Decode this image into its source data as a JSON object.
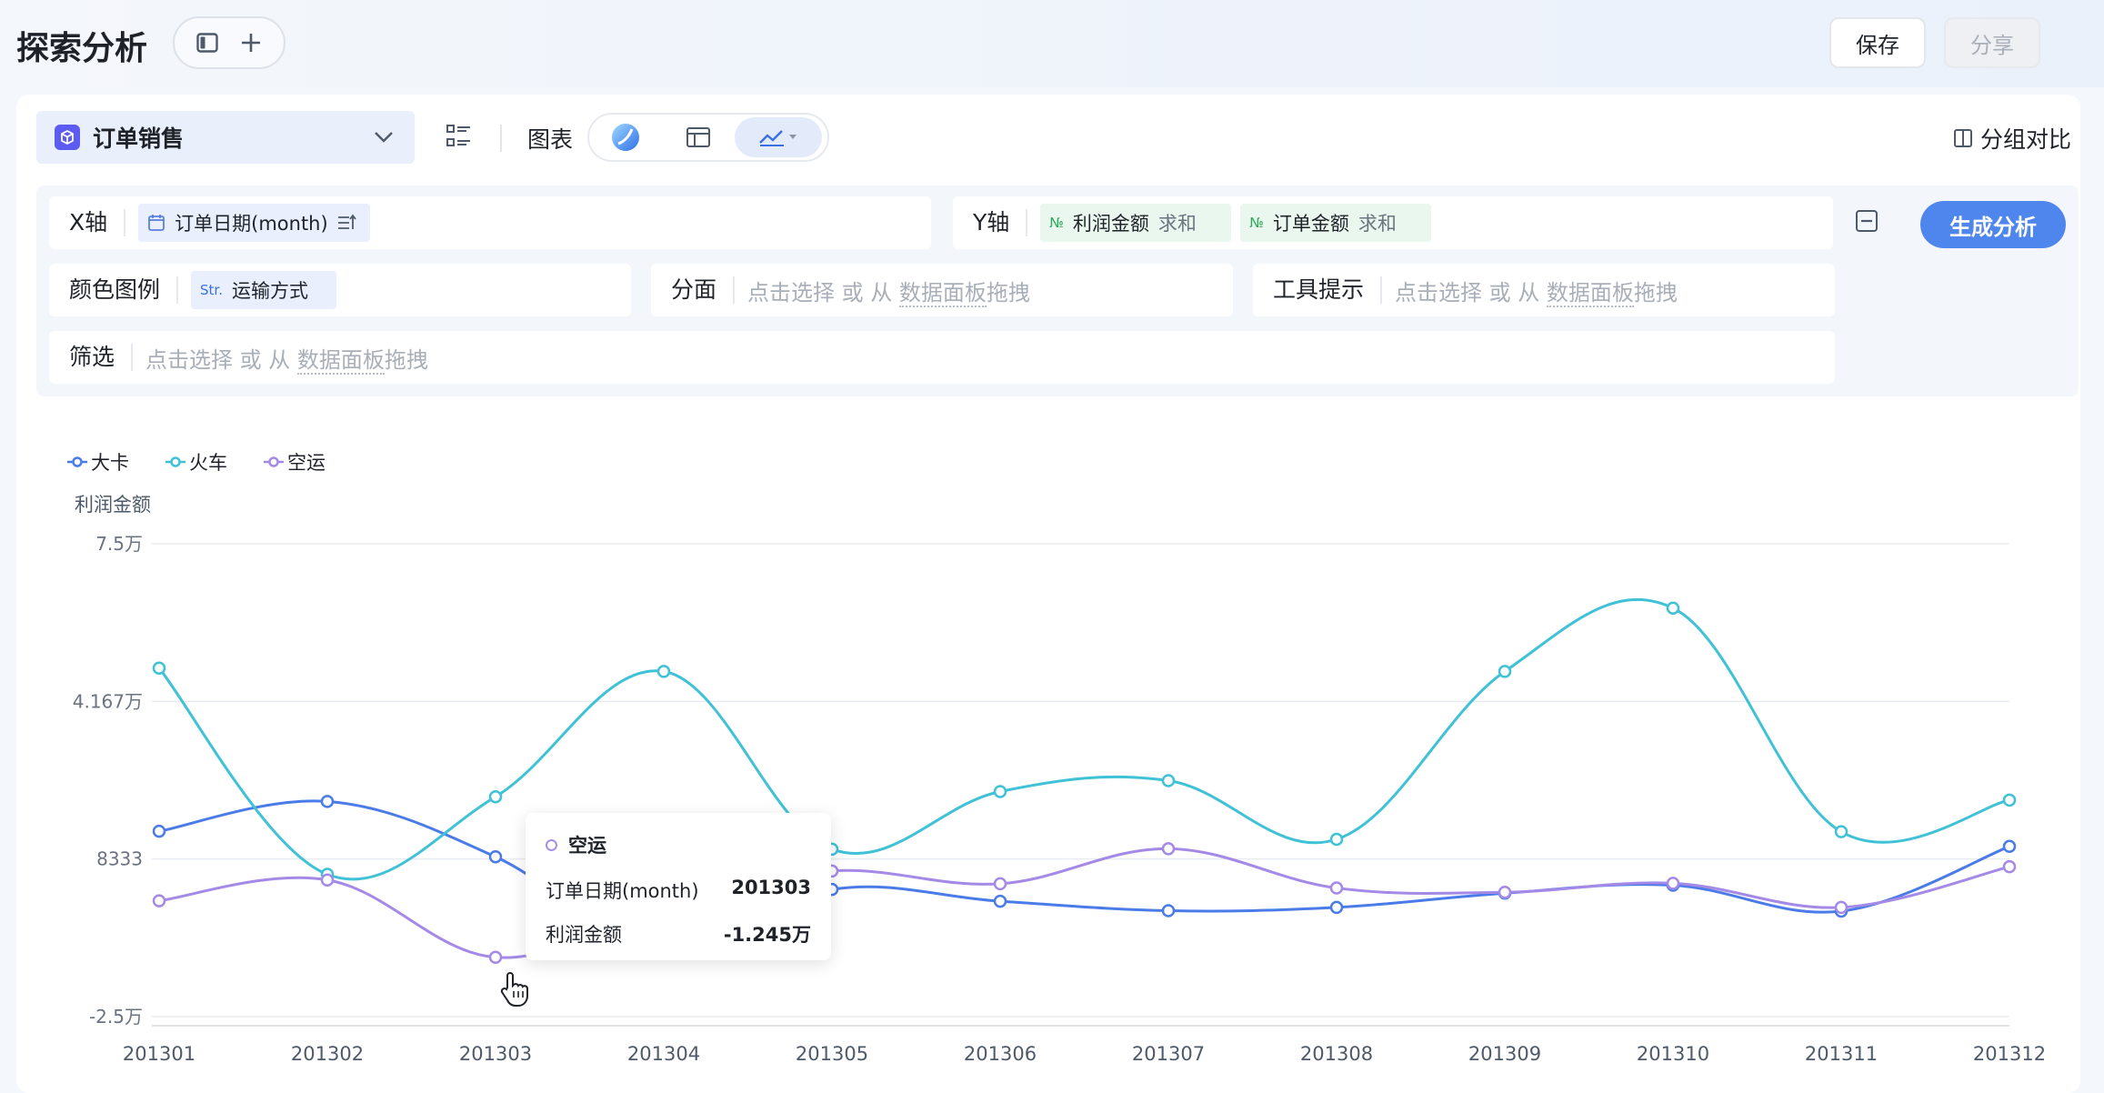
{
  "header": {
    "title": "探索分析",
    "save_label": "保存",
    "share_label": "分享"
  },
  "toolbar": {
    "dataset": "订单销售",
    "chart_label": "图表",
    "group_compare": "分组对比"
  },
  "config": {
    "x_axis": {
      "label": "X轴",
      "field": "订单日期(month)"
    },
    "y_axis": {
      "label": "Y轴",
      "fields": [
        {
          "type": "№",
          "name": "利润金额",
          "agg": "求和"
        },
        {
          "type": "№",
          "name": "订单金额",
          "agg": "求和"
        }
      ]
    },
    "color": {
      "label": "颜色图例",
      "type": "Str.",
      "field": "运输方式"
    },
    "facet": {
      "label": "分面",
      "placeholder_a": "点击选择 或 从",
      "placeholder_b": "数据面板",
      "placeholder_c": "拖拽"
    },
    "tooltip": {
      "label": "工具提示",
      "placeholder_a": "点击选择 或 从",
      "placeholder_b": "数据面板",
      "placeholder_c": "拖拽"
    },
    "filter": {
      "label": "筛选",
      "placeholder_a": "点击选择 或 从",
      "placeholder_b": "数据面板",
      "placeholder_c": "拖拽"
    },
    "generate_label": "生成分析"
  },
  "colors": {
    "truck": "#4a7be8",
    "train": "#3fc1d6",
    "air": "#a48ae6",
    "primary": "#4f86ee"
  },
  "chart_data": {
    "type": "line",
    "ylabel": "利润金额",
    "y_ticks": [
      {
        "value": 75000,
        "label": "7.5万"
      },
      {
        "value": 41667,
        "label": "4.167万"
      },
      {
        "value": 8333,
        "label": "8333"
      },
      {
        "value": -25000,
        "label": "-2.5万"
      }
    ],
    "ylim": [
      -25000,
      75000
    ],
    "categories": [
      "201301",
      "201302",
      "201303",
      "201304",
      "201305",
      "201306",
      "201307",
      "201308",
      "201309",
      "201310",
      "201311",
      "201312"
    ],
    "legend_position": "top-left",
    "grid": true,
    "series": [
      {
        "name": "大卡",
        "color_key": "truck",
        "values": [
          14200,
          20500,
          8800,
          -11400,
          1900,
          -600,
          -2600,
          -1900,
          1100,
          2800,
          -2700,
          11000
        ]
      },
      {
        "name": "火车",
        "color_key": "train",
        "values": [
          48700,
          5100,
          21500,
          48000,
          10400,
          22600,
          24900,
          12500,
          48000,
          61400,
          14100,
          20800
        ]
      },
      {
        "name": "空运",
        "color_key": "air",
        "values": [
          -500,
          3900,
          -12450,
          -1500,
          5800,
          3100,
          10500,
          2200,
          1300,
          3200,
          -1900,
          6700
        ]
      }
    ]
  },
  "tooltip_popup": {
    "series": "空运",
    "rows": [
      {
        "label": "订单日期(month)",
        "value": "201303"
      },
      {
        "label": "利润金额",
        "value": "-1.245万"
      }
    ]
  }
}
